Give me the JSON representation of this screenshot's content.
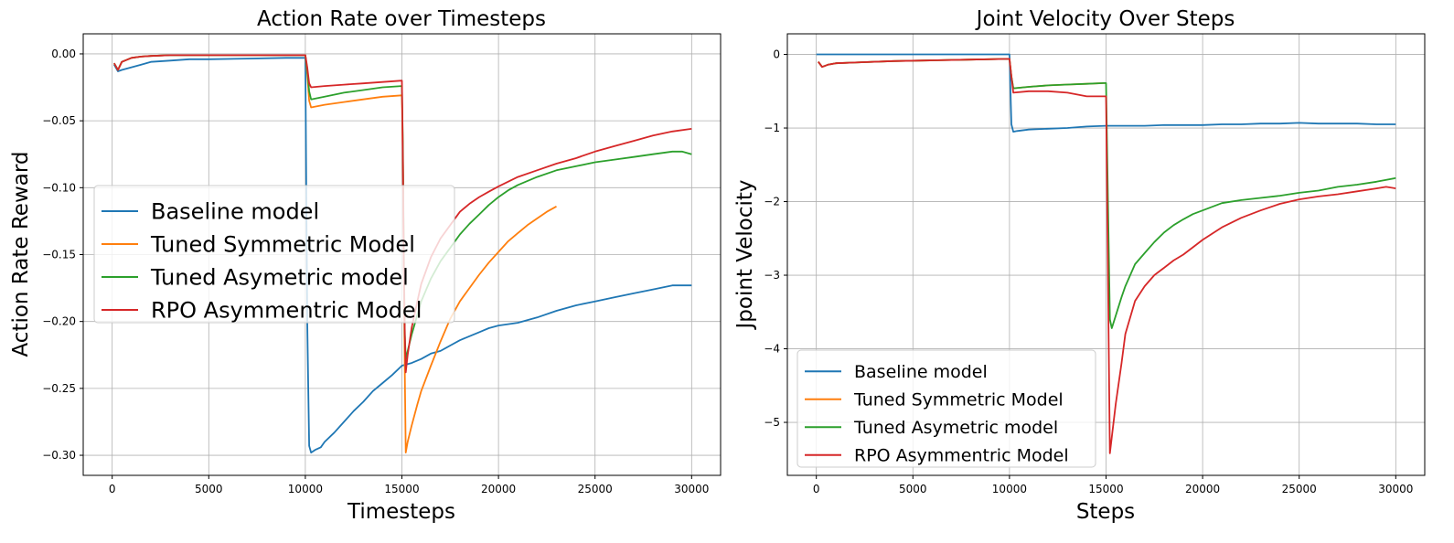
{
  "colors": {
    "blue": "#1f77b4",
    "orange": "#ff7f0e",
    "green": "#2ca02c",
    "red": "#d62728"
  },
  "chart_data": [
    {
      "type": "line",
      "title": "Action Rate over Timesteps",
      "xlabel": "Timesteps",
      "ylabel": "Action Rate Reward",
      "xlim": [
        -1500,
        31500
      ],
      "ylim": [
        -0.315,
        0.015
      ],
      "xticks": [
        0,
        5000,
        10000,
        15000,
        20000,
        25000,
        30000
      ],
      "yticks": [
        0.0,
        -0.05,
        -0.1,
        -0.15,
        -0.2,
        -0.25,
        -0.3
      ],
      "xtick_labels": [
        "0",
        "5000",
        "10000",
        "15000",
        "20000",
        "25000",
        "30000"
      ],
      "ytick_labels": [
        "0.00",
        "−0.05",
        "−0.10",
        "−0.15",
        "−0.20",
        "−0.25",
        "−0.30"
      ],
      "grid": true,
      "legend_position": "center-left",
      "series": [
        {
          "name": "Baseline model",
          "color": "#1f77b4",
          "x": [
            100,
            300,
            500,
            1000,
            1500,
            2000,
            3000,
            4000,
            5000,
            7000,
            9000,
            9900,
            10000,
            10050,
            10100,
            10150,
            10200,
            10300,
            10500,
            10800,
            11000,
            11500,
            12000,
            12500,
            13000,
            13500,
            14000,
            14500,
            15000,
            15500,
            16000,
            16500,
            17000,
            17500,
            18000,
            18500,
            19000,
            19500,
            20000,
            21000,
            22000,
            23000,
            24000,
            25000,
            26000,
            27000,
            28000,
            29000,
            30000
          ],
          "y": [
            -0.008,
            -0.013,
            -0.012,
            -0.01,
            -0.008,
            -0.006,
            -0.005,
            -0.004,
            -0.004,
            -0.0035,
            -0.003,
            -0.003,
            -0.003,
            -0.1,
            -0.2,
            -0.25,
            -0.293,
            -0.298,
            -0.296,
            -0.294,
            -0.29,
            -0.283,
            -0.275,
            -0.267,
            -0.26,
            -0.252,
            -0.246,
            -0.24,
            -0.233,
            -0.231,
            -0.228,
            -0.224,
            -0.222,
            -0.218,
            -0.214,
            -0.211,
            -0.208,
            -0.205,
            -0.203,
            -0.201,
            -0.197,
            -0.192,
            -0.188,
            -0.185,
            -0.182,
            -0.179,
            -0.176,
            -0.173,
            -0.173
          ]
        },
        {
          "name": "Tuned Symmetric Model",
          "color": "#ff7f0e",
          "x": [
            100,
            300,
            500,
            1000,
            1500,
            2000,
            3000,
            5000,
            7000,
            9000,
            10000,
            10100,
            10200,
            10300,
            11000,
            12000,
            13000,
            14000,
            15000,
            15050,
            15100,
            15150,
            15200,
            15300,
            15500,
            15800,
            16000,
            16500,
            17000,
            17500,
            18000,
            18500,
            19000,
            19500,
            20000,
            20500,
            21000,
            21500,
            22000,
            22500,
            23000
          ],
          "y": [
            -0.007,
            -0.012,
            -0.006,
            -0.003,
            -0.002,
            -0.0015,
            -0.001,
            -0.001,
            -0.001,
            -0.001,
            -0.001,
            -0.015,
            -0.035,
            -0.04,
            -0.038,
            -0.036,
            -0.034,
            -0.032,
            -0.031,
            -0.08,
            -0.16,
            -0.24,
            -0.298,
            -0.29,
            -0.278,
            -0.262,
            -0.252,
            -0.233,
            -0.215,
            -0.198,
            -0.185,
            -0.175,
            -0.165,
            -0.156,
            -0.148,
            -0.14,
            -0.134,
            -0.128,
            -0.123,
            -0.118,
            -0.114
          ]
        },
        {
          "name": "Tuned Asymetric model",
          "color": "#2ca02c",
          "x": [
            100,
            300,
            500,
            1000,
            1500,
            2000,
            3000,
            5000,
            7000,
            9000,
            10000,
            10100,
            10200,
            10300,
            11000,
            12000,
            13000,
            14000,
            15000,
            15050,
            15100,
            15150,
            15200,
            15300,
            15500,
            15800,
            16000,
            16500,
            17000,
            17500,
            18000,
            18500,
            19000,
            19500,
            20000,
            20500,
            21000,
            22000,
            23000,
            24000,
            25000,
            26000,
            27000,
            28000,
            29000,
            29500,
            30000
          ],
          "y": [
            -0.007,
            -0.012,
            -0.006,
            -0.003,
            -0.002,
            -0.0015,
            -0.001,
            -0.001,
            -0.001,
            -0.001,
            -0.001,
            -0.012,
            -0.028,
            -0.034,
            -0.032,
            -0.029,
            -0.027,
            -0.025,
            -0.024,
            -0.07,
            -0.15,
            -0.21,
            -0.228,
            -0.222,
            -0.21,
            -0.195,
            -0.185,
            -0.168,
            -0.155,
            -0.145,
            -0.135,
            -0.127,
            -0.12,
            -0.113,
            -0.107,
            -0.102,
            -0.098,
            -0.092,
            -0.087,
            -0.084,
            -0.081,
            -0.079,
            -0.077,
            -0.075,
            -0.073,
            -0.073,
            -0.075
          ]
        },
        {
          "name": "RPO Asymmentric Model",
          "color": "#d62728",
          "x": [
            100,
            300,
            500,
            1000,
            1500,
            2000,
            3000,
            5000,
            7000,
            9000,
            10000,
            10100,
            10200,
            10300,
            11000,
            12000,
            13000,
            14000,
            15000,
            15050,
            15100,
            15150,
            15200,
            15300,
            15500,
            15800,
            16000,
            16500,
            17000,
            17500,
            18000,
            18500,
            19000,
            19500,
            20000,
            21000,
            22000,
            23000,
            24000,
            25000,
            26000,
            27000,
            28000,
            29000,
            30000
          ],
          "y": [
            -0.007,
            -0.012,
            -0.006,
            -0.003,
            -0.002,
            -0.0015,
            -0.001,
            -0.001,
            -0.001,
            -0.001,
            -0.001,
            -0.01,
            -0.022,
            -0.025,
            -0.024,
            -0.023,
            -0.022,
            -0.021,
            -0.02,
            -0.08,
            -0.16,
            -0.21,
            -0.238,
            -0.225,
            -0.205,
            -0.185,
            -0.172,
            -0.152,
            -0.138,
            -0.128,
            -0.118,
            -0.112,
            -0.107,
            -0.103,
            -0.099,
            -0.092,
            -0.087,
            -0.082,
            -0.078,
            -0.073,
            -0.069,
            -0.065,
            -0.061,
            -0.058,
            -0.056
          ]
        }
      ]
    },
    {
      "type": "line",
      "title": "Joint Velocity Over Steps",
      "xlabel": "Steps",
      "ylabel": "Jpoint Velocity",
      "xlim": [
        -1500,
        31500
      ],
      "ylim": [
        -5.72,
        0.28
      ],
      "xticks": [
        0,
        5000,
        10000,
        15000,
        20000,
        25000,
        30000
      ],
      "yticks": [
        0,
        -1,
        -2,
        -3,
        -4,
        -5
      ],
      "xtick_labels": [
        "0",
        "5000",
        "10000",
        "15000",
        "20000",
        "25000",
        "30000"
      ],
      "ytick_labels": [
        "0",
        "−1",
        "−2",
        "−3",
        "−4",
        "−5"
      ],
      "grid": true,
      "legend_position": "lower-left",
      "series": [
        {
          "name": "Baseline model",
          "color": "#1f77b4",
          "x": [
            0,
            2000,
            5000,
            8000,
            10000,
            10050,
            10100,
            10200,
            10400,
            11000,
            12000,
            13000,
            14000,
            15000,
            16000,
            17000,
            18000,
            19000,
            20000,
            21000,
            22000,
            23000,
            24000,
            25000,
            26000,
            27000,
            28000,
            29000,
            30000
          ],
          "y": [
            0,
            0,
            0,
            0,
            0,
            -0.5,
            -0.95,
            -1.05,
            -1.04,
            -1.02,
            -1.01,
            -1.0,
            -0.98,
            -0.97,
            -0.97,
            -0.97,
            -0.96,
            -0.96,
            -0.96,
            -0.95,
            -0.95,
            -0.94,
            -0.94,
            -0.93,
            -0.94,
            -0.94,
            -0.94,
            -0.95,
            -0.95
          ]
        },
        {
          "name": "Tuned Symmetric Model",
          "color": "#ff7f0e",
          "x": [
            100,
            300,
            600,
            1000,
            2000,
            4000,
            6000,
            8000,
            10000,
            10100,
            10200,
            11000,
            12000,
            13000,
            14000,
            14900,
            15000
          ],
          "y": [
            -0.1,
            -0.17,
            -0.14,
            -0.12,
            -0.11,
            -0.09,
            -0.08,
            -0.07,
            -0.06,
            -0.3,
            -0.46,
            -0.44,
            -0.42,
            -0.41,
            -0.4,
            -0.39,
            -0.39
          ]
        },
        {
          "name": "Tuned Asymetric model",
          "color": "#2ca02c",
          "x": [
            100,
            300,
            600,
            1000,
            2000,
            4000,
            6000,
            8000,
            10000,
            10100,
            10200,
            11000,
            12000,
            13000,
            14000,
            14900,
            15000,
            15100,
            15200,
            15300,
            15500,
            15800,
            16000,
            16500,
            17000,
            17500,
            18000,
            18500,
            19000,
            19500,
            20000,
            21000,
            22000,
            23000,
            24000,
            25000,
            26000,
            27000,
            28000,
            29000,
            30000
          ],
          "y": [
            -0.1,
            -0.17,
            -0.14,
            -0.12,
            -0.11,
            -0.09,
            -0.08,
            -0.07,
            -0.06,
            -0.3,
            -0.46,
            -0.44,
            -0.42,
            -0.41,
            -0.4,
            -0.39,
            -0.39,
            -2.0,
            -3.6,
            -3.72,
            -3.55,
            -3.3,
            -3.15,
            -2.85,
            -2.7,
            -2.55,
            -2.42,
            -2.32,
            -2.24,
            -2.17,
            -2.12,
            -2.02,
            -1.98,
            -1.95,
            -1.92,
            -1.88,
            -1.85,
            -1.8,
            -1.77,
            -1.73,
            -1.68
          ]
        },
        {
          "name": "RPO Asymmentric Model",
          "color": "#d62728",
          "x": [
            100,
            300,
            600,
            1000,
            2000,
            4000,
            6000,
            8000,
            10000,
            10100,
            10200,
            11000,
            12000,
            13000,
            14000,
            14900,
            15000,
            15100,
            15200,
            15300,
            15500,
            15800,
            16000,
            16500,
            17000,
            17500,
            18000,
            18500,
            19000,
            19500,
            20000,
            21000,
            22000,
            23000,
            24000,
            25000,
            26000,
            27000,
            28000,
            29000,
            29500,
            30000
          ],
          "y": [
            -0.1,
            -0.17,
            -0.14,
            -0.12,
            -0.11,
            -0.09,
            -0.08,
            -0.07,
            -0.06,
            -0.3,
            -0.52,
            -0.5,
            -0.5,
            -0.52,
            -0.57,
            -0.57,
            -0.57,
            -3.0,
            -5.42,
            -5.2,
            -4.75,
            -4.2,
            -3.8,
            -3.35,
            -3.15,
            -3.0,
            -2.9,
            -2.8,
            -2.72,
            -2.62,
            -2.52,
            -2.35,
            -2.22,
            -2.12,
            -2.03,
            -1.97,
            -1.93,
            -1.9,
            -1.86,
            -1.82,
            -1.8,
            -1.82
          ]
        }
      ]
    }
  ]
}
